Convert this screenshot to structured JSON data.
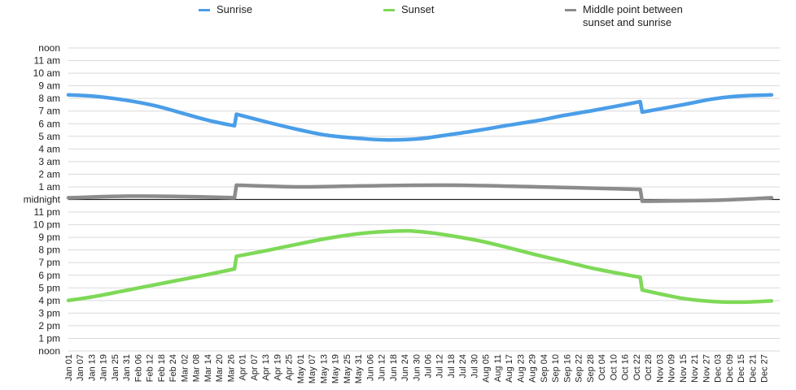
{
  "chart_data": {
    "type": "line",
    "title": "",
    "xlabel": "",
    "ylabel": "",
    "legend_position": "top",
    "grid": true,
    "y_ticks": [
      "noon",
      "11 am",
      "10 am",
      "9 am",
      "8 am",
      "7 am",
      "6 am",
      "5 am",
      "4 am",
      "3 am",
      "2 am",
      "1 am",
      "midnight",
      "11 pm",
      "10 pm",
      "9 pm",
      "8 pm",
      "7 pm",
      "6 pm",
      "5 pm",
      "4 pm",
      "3 pm",
      "2 pm",
      "1 pm",
      "noon"
    ],
    "x_ticks": [
      "Jan 01",
      "Jan 07",
      "Jan 13",
      "Jan 19",
      "Jan 25",
      "Jan 31",
      "Feb 06",
      "Feb 12",
      "Feb 18",
      "Feb 24",
      "Mar 02",
      "Mar 08",
      "Mar 14",
      "Mar 20",
      "Mar 26",
      "Apr 01",
      "Apr 07",
      "Apr 13",
      "Apr 19",
      "Apr 25",
      "May 01",
      "May 07",
      "May 13",
      "May 19",
      "May 25",
      "May 31",
      "Jun 06",
      "Jun 12",
      "Jun 18",
      "Jun 24",
      "Jun 30",
      "Jul 06",
      "Jul 12",
      "Jul 18",
      "Jul 24",
      "Jul 30",
      "Aug 05",
      "Aug 11",
      "Aug 17",
      "Aug 23",
      "Aug 29",
      "Sep 04",
      "Sep 10",
      "Sep 16",
      "Sep 22",
      "Sep 28",
      "Oct 04",
      "Oct 10",
      "Oct 16",
      "Oct 22",
      "Oct 28",
      "Nov 03",
      "Nov 09",
      "Nov 15",
      "Nov 21",
      "Nov 27",
      "Dec 03",
      "Dec 09",
      "Dec 15",
      "Dec 21",
      "Dec 27"
    ],
    "x_range": [
      "Jan 01",
      "Dec 31"
    ],
    "y_range": [
      "noon (previous day)",
      "noon"
    ],
    "series": [
      {
        "name": "Sunrise",
        "color": "#4a9ee8",
        "points": [
          [
            "Jan 01",
            "8:17 am"
          ],
          [
            "Jan 15",
            "8:10 am"
          ],
          [
            "Feb 01",
            "7:50 am"
          ],
          [
            "Feb 15",
            "7:25 am"
          ],
          [
            "Mar 01",
            "6:50 am"
          ],
          [
            "Mar 15",
            "6:15 am"
          ],
          [
            "Mar 28",
            "5:50 am"
          ],
          [
            "Mar 29",
            "6:45 am"
          ],
          [
            "Apr 15",
            "6:05 am"
          ],
          [
            "May 01",
            "5:30 am"
          ],
          [
            "May 15",
            "5:05 am"
          ],
          [
            "Jun 01",
            "4:50 am"
          ],
          [
            "Jun 15",
            "4:43 am"
          ],
          [
            "Jul 01",
            "4:48 am"
          ],
          [
            "Jul 15",
            "5:05 am"
          ],
          [
            "Aug 01",
            "5:28 am"
          ],
          [
            "Aug 15",
            "5:50 am"
          ],
          [
            "Sep 01",
            "6:15 am"
          ],
          [
            "Sep 15",
            "6:40 am"
          ],
          [
            "Oct 01",
            "7:05 am"
          ],
          [
            "Oct 24",
            "7:45 am"
          ],
          [
            "Oct 25",
            "6:55 am"
          ],
          [
            "Nov 15",
            "7:30 am"
          ],
          [
            "Dec 01",
            "7:58 am"
          ],
          [
            "Dec 15",
            "8:12 am"
          ],
          [
            "Dec 31",
            "8:17 am"
          ]
        ]
      },
      {
        "name": "Sunset",
        "color": "#7ed957",
        "points": [
          [
            "Jan 01",
            "4:00 pm"
          ],
          [
            "Jan 15",
            "4:20 pm"
          ],
          [
            "Feb 01",
            "4:50 pm"
          ],
          [
            "Feb 15",
            "5:15 pm"
          ],
          [
            "Mar 01",
            "5:40 pm"
          ],
          [
            "Mar 15",
            "6:05 pm"
          ],
          [
            "Mar 28",
            "6:30 pm"
          ],
          [
            "Mar 29",
            "7:30 pm"
          ],
          [
            "Apr 15",
            "8:00 pm"
          ],
          [
            "May 01",
            "8:30 pm"
          ],
          [
            "May 15",
            "8:55 pm"
          ],
          [
            "Jun 01",
            "9:18 pm"
          ],
          [
            "Jun 20",
            "9:30 pm"
          ],
          [
            "Jul 01",
            "9:28 pm"
          ],
          [
            "Jul 15",
            "9:12 pm"
          ],
          [
            "Aug 01",
            "8:45 pm"
          ],
          [
            "Aug 15",
            "8:15 pm"
          ],
          [
            "Sep 01",
            "7:35 pm"
          ],
          [
            "Sep 15",
            "7:05 pm"
          ],
          [
            "Oct 01",
            "6:30 pm"
          ],
          [
            "Oct 24",
            "5:50 pm"
          ],
          [
            "Oct 25",
            "4:50 pm"
          ],
          [
            "Nov 15",
            "4:10 pm"
          ],
          [
            "Dec 01",
            "3:55 pm"
          ],
          [
            "Dec 15",
            "3:52 pm"
          ],
          [
            "Dec 31",
            "3:58 pm"
          ]
        ]
      },
      {
        "name": "Middle point between sunset and sunrise",
        "color": "#8c8c8c",
        "points": [
          [
            "Jan 01",
            "12:08 am"
          ],
          [
            "Feb 01",
            "12:16 am"
          ],
          [
            "Mar 01",
            "12:14 am"
          ],
          [
            "Mar 28",
            "12:08 am"
          ],
          [
            "Mar 29",
            "1:08 am"
          ],
          [
            "May 01",
            "1:00 am"
          ],
          [
            "Jun 01",
            "1:04 am"
          ],
          [
            "Jul 15",
            "1:08 am"
          ],
          [
            "Sep 01",
            "1:00 am"
          ],
          [
            "Oct 24",
            "0:48 am"
          ],
          [
            "Oct 25",
            "11:52 pm"
          ],
          [
            "Dec 01",
            "11:56 pm"
          ],
          [
            "Dec 31",
            "12:08 am"
          ]
        ]
      }
    ]
  }
}
